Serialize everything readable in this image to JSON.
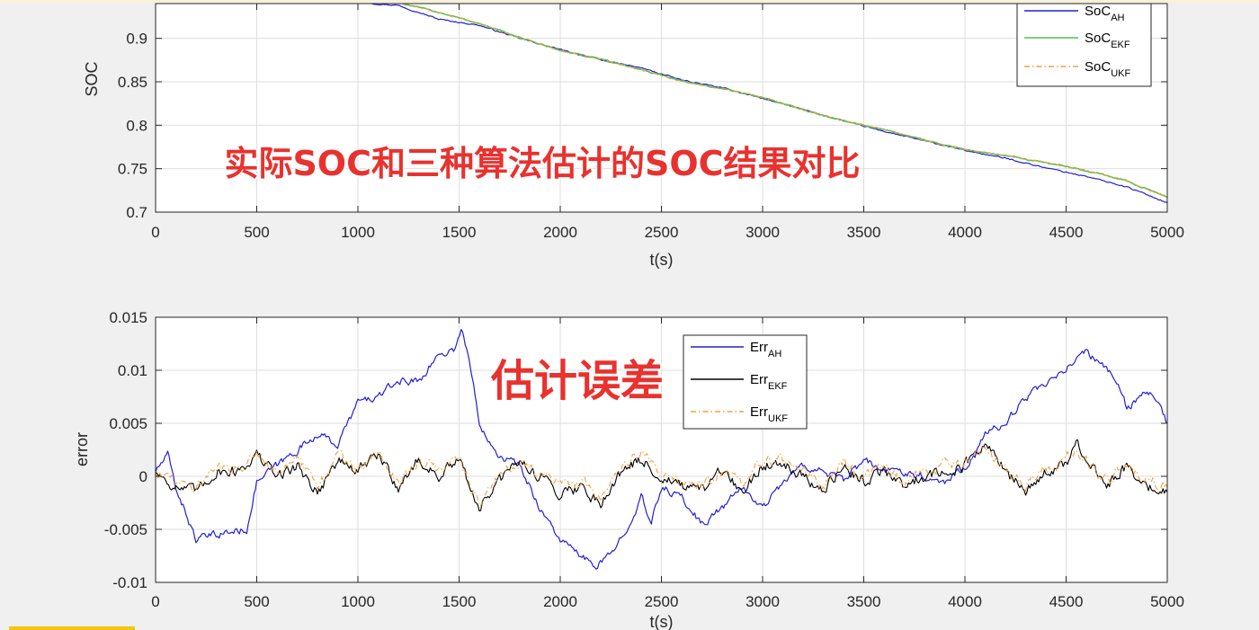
{
  "colors": {
    "ah": "#2020d8",
    "ekf_top": "#4fc24f",
    "ekf_bottom": "#000000",
    "ukf": "#f0a040",
    "overlay": "#e8322f"
  },
  "chart_data": [
    {
      "type": "line",
      "title": "",
      "xlabel": "t(s)",
      "ylabel": "SOC",
      "xlim": [
        0,
        5000
      ],
      "ylim": [
        0.7,
        0.94
      ],
      "xticks": [
        "0",
        "500",
        "1000",
        "1500",
        "2000",
        "2500",
        "3000",
        "3500",
        "4000",
        "4500",
        "5000"
      ],
      "yticks": [
        "0.7",
        "0.75",
        "0.8",
        "0.85",
        "0.9"
      ],
      "grid": true,
      "legend_position": "top-right",
      "annotation": "实际SOC和三种算法估计的SOC结果对比",
      "series": [
        {
          "name": "SoC",
          "sub": "AH",
          "style": "solid",
          "x": [
            1070,
            1200,
            1400,
            1600,
            1800,
            2000,
            2200,
            2400,
            2600,
            2800,
            3000,
            3200,
            3400,
            3600,
            3800,
            4000,
            4200,
            4400,
            4600,
            4800,
            5000
          ],
          "y": [
            0.94,
            0.938,
            0.922,
            0.915,
            0.9,
            0.887,
            0.875,
            0.866,
            0.852,
            0.843,
            0.831,
            0.818,
            0.805,
            0.793,
            0.782,
            0.771,
            0.762,
            0.751,
            0.741,
            0.729,
            0.711
          ]
        },
        {
          "name": "SoC",
          "sub": "EKF",
          "style": "solid",
          "x": [
            1220,
            1400,
            1600,
            1800,
            2000,
            2200,
            2400,
            2600,
            2800,
            3000,
            3200,
            3400,
            3600,
            3800,
            4000,
            4200,
            4400,
            4600,
            4800,
            5000
          ],
          "y": [
            0.94,
            0.93,
            0.917,
            0.901,
            0.886,
            0.876,
            0.864,
            0.851,
            0.842,
            0.832,
            0.818,
            0.805,
            0.795,
            0.783,
            0.772,
            0.765,
            0.757,
            0.748,
            0.736,
            0.717
          ]
        },
        {
          "name": "SoC",
          "sub": "UKF",
          "style": "dashdot",
          "x": [
            1220,
            1400,
            1600,
            1800,
            2000,
            2200,
            2400,
            2600,
            2800,
            3000,
            3200,
            3400,
            3600,
            3800,
            4000,
            4200,
            4400,
            4600,
            4800,
            5000
          ],
          "y": [
            0.94,
            0.93,
            0.917,
            0.901,
            0.886,
            0.876,
            0.864,
            0.851,
            0.842,
            0.832,
            0.818,
            0.805,
            0.795,
            0.783,
            0.772,
            0.765,
            0.757,
            0.748,
            0.736,
            0.717
          ]
        }
      ]
    },
    {
      "type": "line",
      "title": "",
      "xlabel": "t(s)",
      "ylabel": "error",
      "xlim": [
        0,
        5000
      ],
      "ylim": [
        -0.01,
        0.015
      ],
      "xticks": [
        "0",
        "500",
        "1000",
        "1500",
        "2000",
        "2500",
        "3000",
        "3500",
        "4000",
        "4500",
        "5000"
      ],
      "yticks": [
        "-0.01",
        "-0.005",
        "0",
        "0.005",
        "0.01",
        "0.015"
      ],
      "grid": true,
      "legend_position": "top-center",
      "annotation": "估计误差",
      "series": [
        {
          "name": "Err",
          "sub": "AH",
          "style": "solid",
          "x": [
            0,
            60,
            100,
            200,
            300,
            450,
            500,
            600,
            700,
            800,
            900,
            1000,
            1100,
            1200,
            1300,
            1400,
            1480,
            1510,
            1550,
            1600,
            1700,
            1800,
            1900,
            2000,
            2100,
            2170,
            2250,
            2350,
            2400,
            2450,
            2500,
            2600,
            2700,
            2800,
            2900,
            3000,
            3100,
            3200,
            3300,
            3400,
            3500,
            3600,
            3700,
            3800,
            3900,
            4000,
            4050,
            4100,
            4200,
            4300,
            4400,
            4500,
            4580,
            4650,
            4750,
            4800,
            4900,
            4950,
            5000
          ],
          "y": [
            0.0005,
            0.002,
            -0.001,
            -0.006,
            -0.0055,
            -0.005,
            -0.0005,
            0.001,
            0.0025,
            0.004,
            0.003,
            0.007,
            0.0075,
            0.009,
            0.009,
            0.0115,
            0.012,
            0.014,
            0.011,
            0.005,
            0.002,
            0.001,
            -0.003,
            -0.006,
            -0.0075,
            -0.0085,
            -0.0075,
            -0.004,
            -0.002,
            -0.0045,
            -0.001,
            -0.002,
            -0.0045,
            -0.003,
            -0.001,
            -0.003,
            -0.0005,
            0.001,
            0.0005,
            -0.0005,
            0.0015,
            0.0005,
            0.0005,
            0.0,
            -0.0005,
            0.001,
            0.002,
            0.004,
            0.005,
            0.0075,
            0.0085,
            0.01,
            0.012,
            0.011,
            0.009,
            0.0065,
            0.008,
            0.007,
            0.005
          ]
        },
        {
          "name": "Err",
          "sub": "EKF",
          "style": "solid",
          "x": [
            0,
            100,
            200,
            300,
            400,
            500,
            600,
            700,
            800,
            900,
            1000,
            1100,
            1200,
            1300,
            1400,
            1500,
            1600,
            1700,
            1800,
            1900,
            2000,
            2100,
            2200,
            2300,
            2400,
            2500,
            2600,
            2700,
            2800,
            2900,
            3000,
            3100,
            3200,
            3300,
            3400,
            3500,
            3600,
            3700,
            3800,
            3900,
            4000,
            4100,
            4200,
            4300,
            4400,
            4500,
            4550,
            4600,
            4700,
            4800,
            4900,
            5000
          ],
          "y": [
            0.0005,
            -0.001,
            -0.0015,
            0.0005,
            0.0005,
            0.002,
            0.0,
            0.001,
            -0.0015,
            0.0015,
            0.0005,
            0.002,
            -0.001,
            0.0015,
            0.0,
            0.0015,
            -0.003,
            -0.0005,
            0.0015,
            0.0,
            -0.0015,
            -0.001,
            -0.0025,
            0.0005,
            0.0015,
            0.0,
            -0.001,
            -0.0015,
            0.0005,
            -0.0015,
            0.001,
            0.0015,
            0.0,
            -0.0015,
            0.001,
            -0.0005,
            0.0005,
            -0.001,
            0.0,
            0.0005,
            0.001,
            0.003,
            0.0005,
            -0.0015,
            0.0005,
            0.001,
            0.003,
            0.0015,
            -0.001,
            0.001,
            -0.001,
            -0.0015
          ]
        },
        {
          "name": "Err",
          "sub": "UKF",
          "style": "dashdot",
          "x": [
            0,
            100,
            200,
            300,
            400,
            500,
            600,
            700,
            800,
            900,
            1000,
            1100,
            1200,
            1300,
            1400,
            1500,
            1600,
            1700,
            1800,
            1900,
            2000,
            2100,
            2200,
            2300,
            2400,
            2500,
            2600,
            2700,
            2800,
            2900,
            3000,
            3100,
            3200,
            3300,
            3400,
            3500,
            3600,
            3700,
            3800,
            3900,
            4000,
            4100,
            4200,
            4300,
            4400,
            4500,
            4550,
            4600,
            4700,
            4800,
            4900,
            5000
          ],
          "y": [
            0.0005,
            -0.0005,
            -0.001,
            0.001,
            0.0005,
            0.0025,
            0.0005,
            0.0015,
            -0.001,
            0.002,
            0.0005,
            0.002,
            -0.0005,
            0.0015,
            0.0005,
            0.002,
            -0.0025,
            0.0,
            0.0015,
            0.0005,
            -0.001,
            -0.0005,
            -0.002,
            0.001,
            0.002,
            0.0005,
            -0.0005,
            -0.001,
            0.0005,
            -0.001,
            0.0015,
            0.0015,
            0.0005,
            -0.001,
            0.0015,
            0.0,
            0.001,
            -0.0005,
            0.0005,
            0.001,
            0.0015,
            0.0025,
            0.0005,
            -0.001,
            0.0005,
            0.0015,
            0.0025,
            0.0015,
            -0.0005,
            0.001,
            -0.0005,
            -0.001
          ]
        }
      ]
    }
  ]
}
